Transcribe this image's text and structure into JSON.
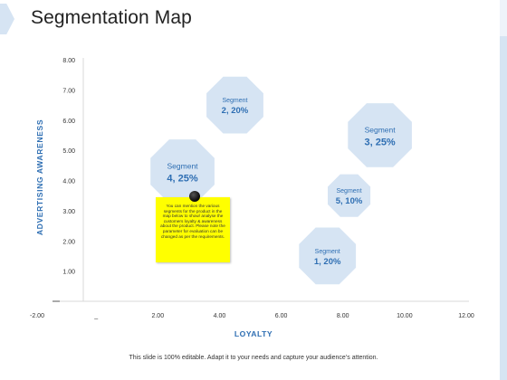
{
  "page": {
    "title": "Segmentation Map",
    "footer": "This slide is 100% editable. Adapt it to your needs and capture your audience’s attention."
  },
  "note": {
    "text": "You can mention the various segments for the product in the map below to show/ analyse the customers loyalty & awareness about the product. Please note the parameter for evaluation can be changed as per the requirements."
  },
  "colors": {
    "bubble_fill": "#d6e4f3",
    "bubble_text": "#2f6fb3",
    "axis_label": "#2f6fb3",
    "note_fill": "#ffff00",
    "accent_strip": "#d6e4f3"
  },
  "chart_data": {
    "type": "scatter",
    "title": "",
    "xlabel": "LOYALTY",
    "ylabel": "ADVERTISING AWARENESS",
    "xlim": [
      -2,
      12
    ],
    "ylim": [
      0,
      8
    ],
    "x_ticks": [
      "-2.00",
      "_",
      "2.00",
      "4.00",
      "6.00",
      "8.00",
      "10.00",
      "12.00"
    ],
    "y_ticks": [
      "1.00",
      "2.00",
      "3.00",
      "4.00",
      "5.00",
      "6.00",
      "7.00",
      "8.00"
    ],
    "grid": false,
    "points": [
      {
        "name": "Segment",
        "label": "2, 20%",
        "x": 4.5,
        "y": 6.5,
        "size": 20
      },
      {
        "name": "Segment",
        "label": "3, 25%",
        "x": 9.2,
        "y": 5.5,
        "size": 25
      },
      {
        "name": "Segment",
        "label": "4, 25%",
        "x": 2.8,
        "y": 4.3,
        "size": 25
      },
      {
        "name": "Segment",
        "label": "5, 10%",
        "x": 8.2,
        "y": 3.5,
        "size": 10
      },
      {
        "name": "Segment",
        "label": "1, 20%",
        "x": 7.5,
        "y": 1.5,
        "size": 20
      }
    ]
  }
}
